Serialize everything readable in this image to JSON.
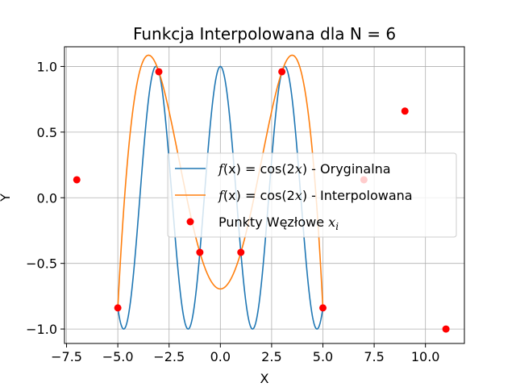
{
  "chart_data": {
    "type": "line",
    "title": "Funkcja Interpolowana dla N = 6",
    "xlabel": "X",
    "ylabel": "Y",
    "xlim": [
      -7.6,
      11.9
    ],
    "ylim": [
      -1.11,
      1.15
    ],
    "x_ticks": [
      -7.5,
      -5.0,
      -2.5,
      0.0,
      2.5,
      5.0,
      7.5,
      10.0
    ],
    "x_tick_labels": [
      "−7.5",
      "−5.0",
      "−2.5",
      "0.0",
      "2.5",
      "5.0",
      "7.5",
      "10.0"
    ],
    "y_ticks": [
      -1.0,
      -0.5,
      0.0,
      0.5,
      1.0
    ],
    "y_tick_labels": [
      "−1.0",
      "−0.5",
      "0.0",
      "0.5",
      "1.0"
    ],
    "grid": true,
    "legend_position": "center-right",
    "series": [
      {
        "name": "f(x) = cos(2x) - Oryginalna",
        "kind": "line",
        "color": "#1f77b4",
        "function": "cos(2x)",
        "x_range": [
          -5,
          5
        ]
      },
      {
        "name": "f(x) = cos(2x) - Interpolowana",
        "kind": "line",
        "color": "#ff7f0e",
        "x_range": [
          -5,
          5
        ],
        "x": [
          -5,
          -3,
          -1,
          1,
          3,
          5
        ],
        "y": [
          -0.839,
          0.96,
          -0.416,
          -0.416,
          0.96,
          -0.839
        ]
      },
      {
        "name": "Punkty Węzłowe x_i",
        "kind": "scatter",
        "color": "#ff0000",
        "x": [
          -7,
          -5,
          -3,
          -1,
          1,
          3,
          5,
          7,
          9,
          11
        ],
        "y": [
          0.137,
          -0.839,
          0.96,
          -0.416,
          -0.416,
          0.96,
          -0.839,
          0.137,
          0.66,
          -1.0
        ]
      }
    ],
    "legend": [
      {
        "prefix": "f",
        "mid": "(x) = cos(2",
        "var": "x",
        "suffix": ") - Oryginalna"
      },
      {
        "prefix": "f",
        "mid": "(x) = cos(2",
        "var": "x",
        "suffix": ") - Interpolowana"
      },
      {
        "text": "Punkty Węzłowe ",
        "var": "x",
        "sub": "i"
      }
    ]
  }
}
